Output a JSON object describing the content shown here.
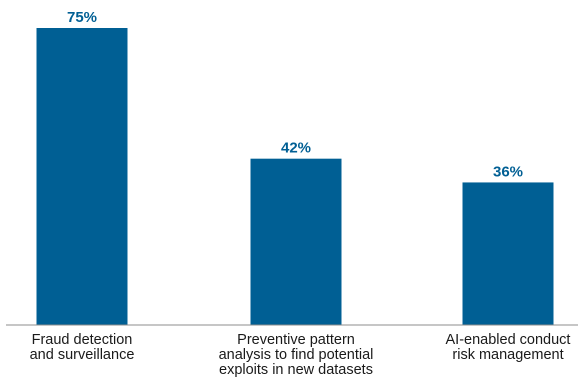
{
  "chart_data": {
    "type": "bar",
    "categories": [
      [
        "Fraud detection",
        "and surveillance"
      ],
      [
        "Preventive pattern",
        "analysis to find potential",
        "exploits in new datasets"
      ],
      [
        "AI-enabled conduct",
        "risk management"
      ]
    ],
    "values": [
      75,
      42,
      36
    ],
    "value_labels": [
      "75%",
      "42%",
      "36%"
    ],
    "title": "",
    "xlabel": "",
    "ylabel": "",
    "ylim": [
      0,
      80
    ],
    "grid": false,
    "legend": "none",
    "bar_color": "#005f94",
    "label_color": "#005f94",
    "axis_color": "#8c8c8c"
  }
}
